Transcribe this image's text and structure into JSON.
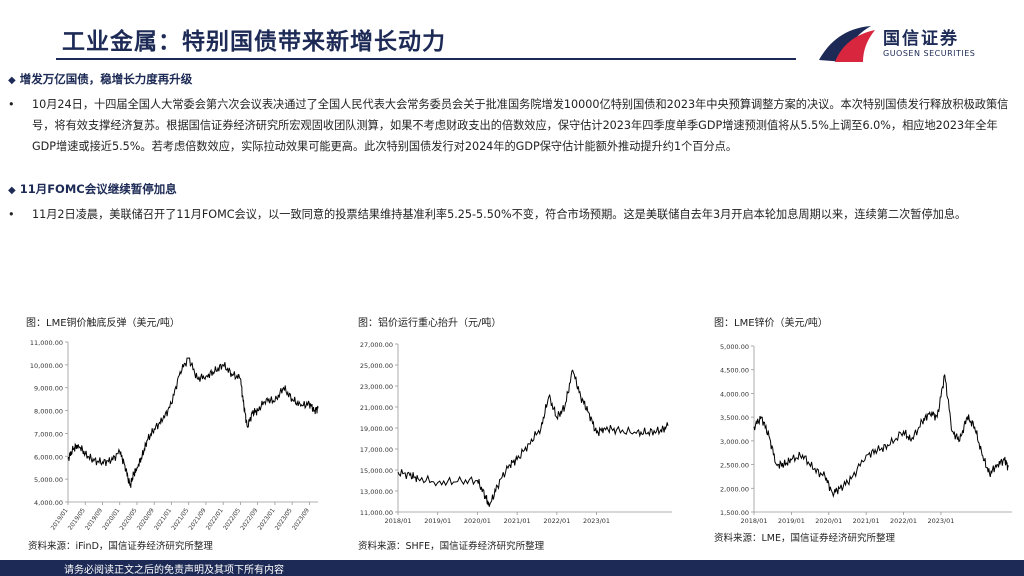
{
  "header": {
    "title": "工业金属：特别国债带来新增长动力",
    "logo_cn": "国信证券",
    "logo_en": "GUOSEN SECURITIES"
  },
  "sections": [
    {
      "heading": "增发万亿国债，稳增长力度再升级",
      "body": "10月24日，十四届全国人大常委会第六次会议表决通过了全国人民代表大会常务委员会关于批准国务院增发10000亿特别国债和2023年中央预算调整方案的决议。本次特别国债发行释放积极政策信号，将有效支撑经济复苏。根据国信证券经济研究所宏观固收团队测算，如果不考虑财政支出的倍数效应，保守估计2023年四季度单季GDP增速预测值将从5.5%上调至6.0%，相应地2023年全年GDP增速或接近5.5%。若考虑倍数效应，实际拉动效果可能更高。此次特别国债发行对2024年的GDP保守估计能额外推动提升约1个百分点。"
    },
    {
      "heading": "11月FOMC会议继续暂停加息",
      "body": "11月2日凌晨，美联储召开了11月FOMC会议，以一致同意的投票结果维持基准利率5.25-5.50%不变，符合市场预期。这是美联储自去年3月开启本轮加息周期以来，连续第二次暂停加息。"
    }
  ],
  "bullet_symbol": "•",
  "section_symbol": "◆",
  "chart_data": [
    {
      "type": "line",
      "title": "图：LME铜价触底反弹（美元/吨）",
      "source": "资料来源：iFinD，国信证券经济研究所整理",
      "ylim": [
        4000,
        11000
      ],
      "yticks": [
        "4,000.00",
        "5,000.00",
        "6,000.00",
        "7,000.00",
        "8,000.00",
        "9,000.00",
        "10,000.00",
        "11,000.00"
      ],
      "xticks": [
        "2019/01",
        "2019/05",
        "2019/09",
        "2020/01",
        "2020/05",
        "2020/09",
        "2021/01",
        "2021/05",
        "2021/09",
        "2022/01",
        "2022/05",
        "2022/09",
        "2023/01",
        "2023/05",
        "2023/09"
      ],
      "xlim": [
        0,
        14.5
      ],
      "x": [
        0,
        0.3,
        0.6,
        1,
        1.5,
        2,
        2.5,
        3,
        3.3,
        3.6,
        3.8,
        4,
        4.3,
        4.6,
        5,
        5.5,
        6,
        6.5,
        7,
        7.5,
        8,
        8.5,
        9,
        9.5,
        10,
        10.2,
        10.4,
        10.7,
        11,
        11.5,
        12,
        12.5,
        13,
        13.5,
        14,
        14.3,
        14.5
      ],
      "values": [
        5900,
        6300,
        6500,
        6100,
        5800,
        5750,
        5800,
        6200,
        5600,
        4700,
        5200,
        5500,
        6000,
        6700,
        7200,
        7600,
        8300,
        9700,
        10300,
        9400,
        9500,
        9700,
        10000,
        9600,
        9400,
        8200,
        7300,
        7900,
        8000,
        8500,
        8400,
        9000,
        8500,
        8200,
        8300,
        8000,
        8100
      ],
      "color": "#000000"
    },
    {
      "type": "line",
      "title": "图：铝价运行重心抬升（元/吨）",
      "source": "资料来源：SHFE，国信证券经济研究所整理",
      "ylim": [
        11000,
        27000
      ],
      "yticks": [
        "11,000.00",
        "13,000.00",
        "15,000.00",
        "17,000.00",
        "19,000.00",
        "21,000.00",
        "23,000.00",
        "25,000.00",
        "27,000.00"
      ],
      "xticks": [
        "2018/01",
        "2019/01",
        "2020/01",
        "2021/01",
        "2022/01",
        "2023/01"
      ],
      "xlim": [
        0,
        6.9
      ],
      "x": [
        0,
        0.3,
        0.5,
        1,
        1.5,
        2,
        2.2,
        2.3,
        2.5,
        2.8,
        3,
        3.3,
        3.6,
        3.8,
        4,
        4.2,
        4.4,
        4.6,
        4.8,
        5,
        5.2,
        5.5,
        6,
        6.3,
        6.6,
        6.8
      ],
      "values": [
        14800,
        14500,
        14200,
        13800,
        13900,
        14000,
        12500,
        11500,
        13500,
        15500,
        16000,
        17500,
        19000,
        22000,
        20000,
        21000,
        24500,
        22000,
        20500,
        18500,
        19000,
        18800,
        18500,
        18600,
        18700,
        19200
      ],
      "color": "#000000"
    },
    {
      "type": "line",
      "title": "图：LME锌价（美元/吨）",
      "source": "资料来源：LME，国信证券经济研究所整理",
      "ylim": [
        1500,
        5000
      ],
      "yticks": [
        "1,500.00",
        "2,000.00",
        "2,500.00",
        "3,000.00",
        "3,500.00",
        "4,000.00",
        "4,500.00",
        "5,000.00"
      ],
      "xticks": [
        "2018/01",
        "2019/01",
        "2020/01",
        "2021/01",
        "2022/01",
        "2023/01"
      ],
      "xlim": [
        0,
        6.9
      ],
      "x": [
        0,
        0.2,
        0.4,
        0.6,
        0.8,
        1,
        1.3,
        1.6,
        1.9,
        2.1,
        2.3,
        2.6,
        3,
        3.3,
        3.6,
        4,
        4.2,
        4.5,
        4.7,
        4.9,
        5.1,
        5.3,
        5.5,
        5.7,
        5.9,
        6.1,
        6.3,
        6.5,
        6.7,
        6.8
      ],
      "values": [
        3300,
        3500,
        3100,
        2500,
        2500,
        2600,
        2700,
        2400,
        2250,
        1900,
        2000,
        2200,
        2700,
        2800,
        2900,
        3200,
        3000,
        3400,
        3600,
        3500,
        4400,
        3200,
        3000,
        3500,
        3300,
        2700,
        2300,
        2500,
        2600,
        2450
      ],
      "color": "#000000"
    }
  ],
  "footer": {
    "disclaimer": "请务必阅读正文之后的免责声明及其项下所有内容"
  },
  "colors": {
    "brand": "#1c2a55",
    "logo_red": "#d7263d"
  }
}
